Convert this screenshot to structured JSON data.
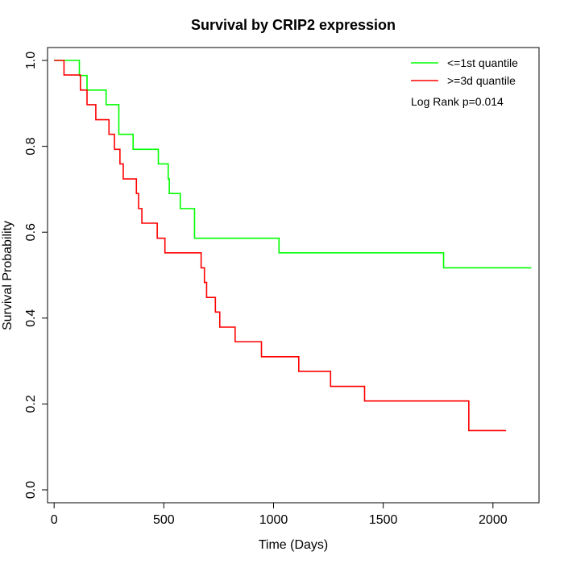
{
  "chart_data": {
    "type": "line",
    "step": true,
    "title": "Survival by CRIP2 expression",
    "xlabel": "Time (Days)",
    "ylabel": "Survival Probability",
    "xlim": [
      -30,
      2210
    ],
    "ylim": [
      -0.03,
      1.03
    ],
    "xticks": [
      0,
      500,
      1000,
      1500,
      2000
    ],
    "yticks": [
      0.0,
      0.2,
      0.4,
      0.6,
      0.8,
      1.0
    ],
    "xtick_labels": [
      "0",
      "500",
      "1000",
      "1500",
      "2000"
    ],
    "ytick_labels": [
      "0.0",
      "0.2",
      "0.4",
      "0.6",
      "0.8",
      "1.0"
    ],
    "grid": false,
    "legend_position": "top-right",
    "annotation": "Log Rank p=0.014",
    "series": [
      {
        "name": "<=1st quantile",
        "color": "#00ff00",
        "points": [
          [
            0,
            1.0
          ],
          [
            115,
            1.0
          ],
          [
            115,
            0.965
          ],
          [
            150,
            0.965
          ],
          [
            150,
            0.931
          ],
          [
            237,
            0.931
          ],
          [
            237,
            0.897
          ],
          [
            295,
            0.897
          ],
          [
            295,
            0.828
          ],
          [
            360,
            0.828
          ],
          [
            360,
            0.793
          ],
          [
            475,
            0.793
          ],
          [
            475,
            0.759
          ],
          [
            520,
            0.759
          ],
          [
            520,
            0.724
          ],
          [
            525,
            0.724
          ],
          [
            525,
            0.69
          ],
          [
            575,
            0.69
          ],
          [
            575,
            0.655
          ],
          [
            640,
            0.655
          ],
          [
            640,
            0.586
          ],
          [
            1025,
            0.586
          ],
          [
            1025,
            0.552
          ],
          [
            1775,
            0.552
          ],
          [
            1775,
            0.517
          ],
          [
            2175,
            0.517
          ]
        ]
      },
      {
        "name": ">=3d quantile",
        "color": "#ff0000",
        "points": [
          [
            0,
            1.0
          ],
          [
            45,
            1.0
          ],
          [
            45,
            0.966
          ],
          [
            120,
            0.966
          ],
          [
            120,
            0.931
          ],
          [
            150,
            0.931
          ],
          [
            150,
            0.897
          ],
          [
            190,
            0.897
          ],
          [
            190,
            0.862
          ],
          [
            250,
            0.862
          ],
          [
            250,
            0.828
          ],
          [
            275,
            0.828
          ],
          [
            275,
            0.793
          ],
          [
            300,
            0.793
          ],
          [
            300,
            0.759
          ],
          [
            315,
            0.759
          ],
          [
            315,
            0.724
          ],
          [
            375,
            0.724
          ],
          [
            375,
            0.69
          ],
          [
            385,
            0.69
          ],
          [
            385,
            0.655
          ],
          [
            400,
            0.655
          ],
          [
            400,
            0.621
          ],
          [
            470,
            0.621
          ],
          [
            470,
            0.586
          ],
          [
            505,
            0.586
          ],
          [
            505,
            0.552
          ],
          [
            670,
            0.552
          ],
          [
            670,
            0.517
          ],
          [
            685,
            0.517
          ],
          [
            685,
            0.483
          ],
          [
            695,
            0.483
          ],
          [
            695,
            0.448
          ],
          [
            735,
            0.448
          ],
          [
            735,
            0.414
          ],
          [
            755,
            0.414
          ],
          [
            755,
            0.379
          ],
          [
            825,
            0.379
          ],
          [
            825,
            0.345
          ],
          [
            945,
            0.345
          ],
          [
            945,
            0.31
          ],
          [
            1115,
            0.31
          ],
          [
            1115,
            0.276
          ],
          [
            1260,
            0.276
          ],
          [
            1260,
            0.241
          ],
          [
            1415,
            0.241
          ],
          [
            1415,
            0.207
          ],
          [
            1890,
            0.207
          ],
          [
            1890,
            0.138
          ],
          [
            2060,
            0.138
          ]
        ]
      }
    ]
  }
}
